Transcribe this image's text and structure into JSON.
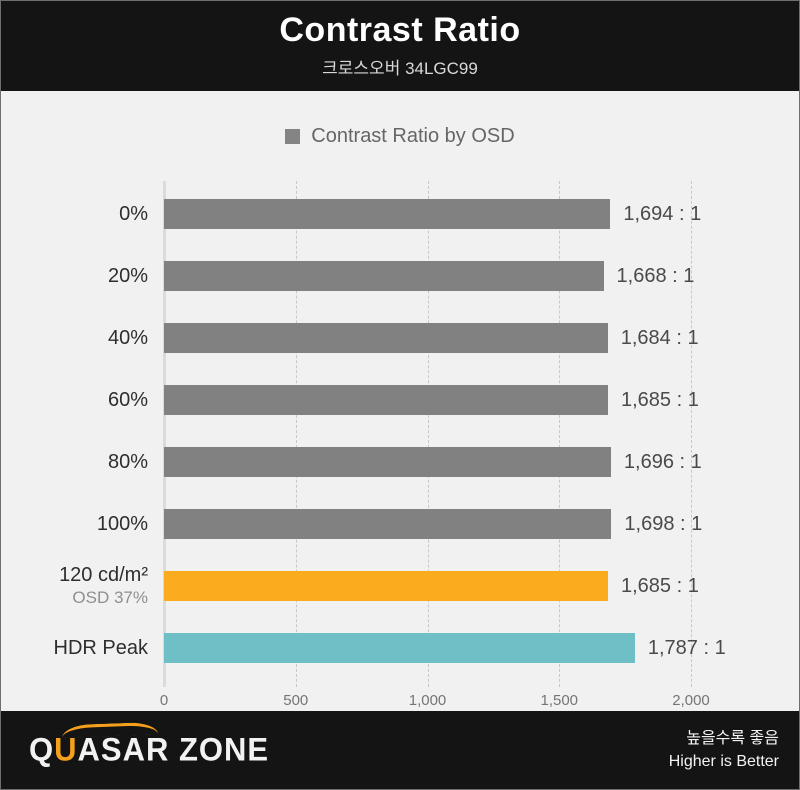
{
  "header": {
    "title": "Contrast Ratio",
    "subtitle": "크로스오버 34LGC99"
  },
  "legend": {
    "label": "Contrast Ratio by OSD",
    "swatch_color": "#848484"
  },
  "chart_data": {
    "type": "bar",
    "orientation": "horizontal",
    "title": "Contrast Ratio",
    "subtitle": "크로스오버 34LGC99",
    "legend_entries": [
      "Contrast Ratio by OSD"
    ],
    "legend_position": "top-center",
    "categories": [
      "0%",
      "20%",
      "40%",
      "60%",
      "80%",
      "100%",
      "120 cd/m²",
      "HDR Peak"
    ],
    "category_sublabels": [
      "",
      "",
      "",
      "",
      "",
      "",
      "OSD 37%",
      ""
    ],
    "values": [
      1694,
      1668,
      1684,
      1685,
      1696,
      1698,
      1685,
      1787
    ],
    "value_labels": [
      "1,694 : 1",
      "1,668 : 1",
      "1,684 : 1",
      "1,685 : 1",
      "1,696 : 1",
      "1,698 : 1",
      "1,685 : 1",
      "1,787 : 1"
    ],
    "bar_colors": [
      "#818181",
      "#818181",
      "#818181",
      "#818181",
      "#818181",
      "#818181",
      "#faab1e",
      "#6fbfc6"
    ],
    "xlim": [
      0,
      2000
    ],
    "x_tick_values": [
      0,
      500,
      1000,
      1500,
      2000
    ],
    "x_tick_labels": [
      "0",
      "500",
      "1,000",
      "1,500",
      "2,000"
    ],
    "grid": "dashed-vertical",
    "higher_is_better": true
  },
  "footer": {
    "logo": {
      "q": "Q",
      "u": "U",
      "rest": "ASAR ZONE"
    },
    "note_ko": "높을수록 좋음",
    "note_en": "Higher is Better"
  },
  "colors": {
    "band_background": "#141414",
    "chart_background": "#f1f1f1",
    "bar_default": "#818181",
    "bar_orange": "#faab1e",
    "bar_teal": "#6fbfc6",
    "logo_accent": "#f5a01d"
  }
}
